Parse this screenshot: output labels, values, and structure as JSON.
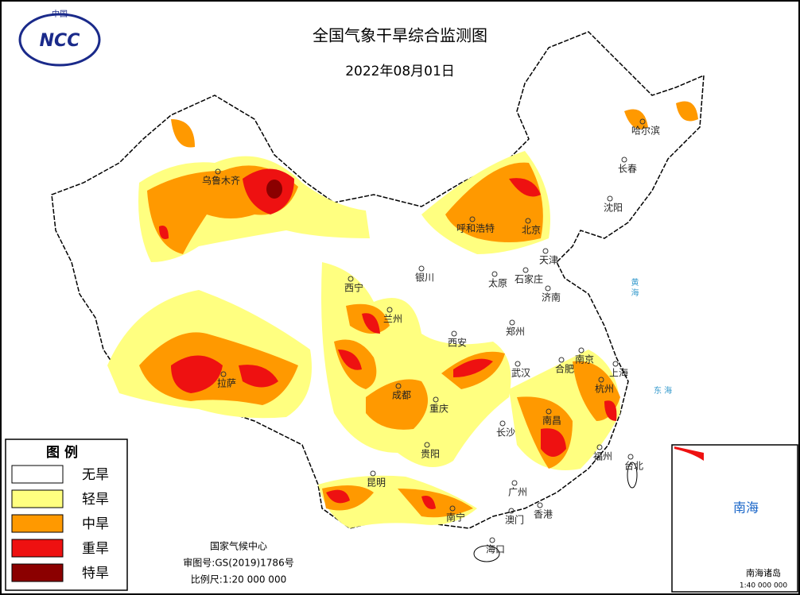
{
  "header": {
    "logo_top": "中国",
    "logo": "NCC",
    "title": "全国气象干旱综合监测图",
    "date": "2022年08月01日"
  },
  "legend": {
    "title": "图 例",
    "items": [
      {
        "label": "无旱",
        "color": "#ffffff"
      },
      {
        "label": "轻旱",
        "color": "#ffff80"
      },
      {
        "label": "中旱",
        "color": "#ff9900"
      },
      {
        "label": "重旱",
        "color": "#ee1111"
      },
      {
        "label": "特旱",
        "color": "#8b0000"
      }
    ]
  },
  "cities": [
    {
      "label": "乌鲁木齐"
    },
    {
      "label": "哈尔滨"
    },
    {
      "label": "长春"
    },
    {
      "label": "沈阳"
    },
    {
      "label": "呼和浩特"
    },
    {
      "label": "北京"
    },
    {
      "label": "天津"
    },
    {
      "label": "石家庄"
    },
    {
      "label": "太原"
    },
    {
      "label": "银川"
    },
    {
      "label": "西宁"
    },
    {
      "label": "兰州"
    },
    {
      "label": "济南"
    },
    {
      "label": "郑州"
    },
    {
      "label": "西安"
    },
    {
      "label": "拉萨"
    },
    {
      "label": "成都"
    },
    {
      "label": "重庆"
    },
    {
      "label": "武汉"
    },
    {
      "label": "合肥"
    },
    {
      "label": "南京"
    },
    {
      "label": "上海"
    },
    {
      "label": "杭州"
    },
    {
      "label": "长沙"
    },
    {
      "label": "南昌"
    },
    {
      "label": "贵阳"
    },
    {
      "label": "福州"
    },
    {
      "label": "台北"
    },
    {
      "label": "昆明"
    },
    {
      "label": "南宁"
    },
    {
      "label": "广州"
    },
    {
      "label": "香港"
    },
    {
      "label": "澳门"
    },
    {
      "label": "海口"
    }
  ],
  "seas": {
    "yellow_sea": "黄 海",
    "east_sea": "东 海"
  },
  "footer": {
    "org": "国家气候中心",
    "review": "审图号:GS(2019)1786号",
    "scale": "比例尺:1:20 000 000"
  },
  "inset": {
    "sea": "南海",
    "islands": "南海诸岛",
    "scale": "1:40 000 000"
  }
}
